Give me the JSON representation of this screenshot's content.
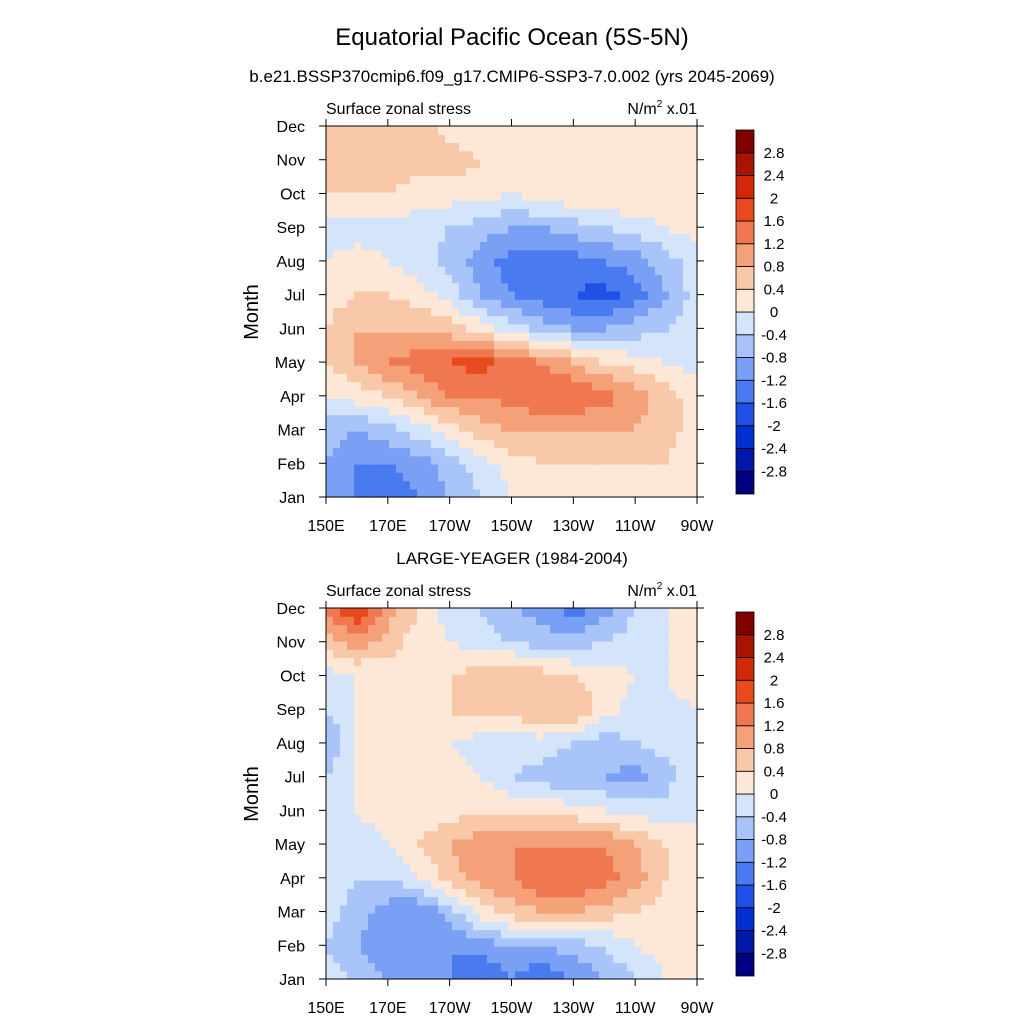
{
  "figure": {
    "title": "Equatorial Pacific Ocean (5S-5N)",
    "colors": [
      "#000080",
      "#0018a8",
      "#0030d0",
      "#2050e8",
      "#4a7af0",
      "#7aa0f5",
      "#a8c4f8",
      "#d4e4fb",
      "#fde8d8",
      "#f8c8a8",
      "#f4a078",
      "#f07850",
      "#e84a20",
      "#d02808",
      "#a81400",
      "#800000"
    ],
    "levels": [
      -2.8,
      -2.4,
      -2,
      -1.6,
      -1.2,
      -0.8,
      -0.4,
      0,
      0.4,
      0.8,
      1.2,
      1.6,
      2,
      2.4,
      2.8
    ]
  },
  "chart_data": [
    {
      "type": "heatmap",
      "title": "b.e21.BSSP370cmip6.f09_g17.CMIP6-SSP3-7.0.002 (yrs 2045-2069)",
      "left_label": "Surface zonal stress",
      "units_base": "N/m",
      "units_exp": "2",
      "units_scale": " x.01",
      "ylabel": "Month",
      "x_ticks": [
        "150E",
        "170E",
        "170W",
        "150W",
        "130W",
        "110W",
        "90W"
      ],
      "y_ticks": [
        "Jan",
        "Feb",
        "Mar",
        "Apr",
        "May",
        "Jun",
        "Jul",
        "Aug",
        "Sep",
        "Oct",
        "Nov",
        "Dec"
      ],
      "xlim": [
        150,
        270
      ],
      "ylim": [
        1,
        12
      ],
      "colorbar_labels": [
        "2.8",
        "2.4",
        "2",
        "1.6",
        "1.2",
        "0.8",
        "0.4",
        "0",
        "-0.4",
        "-0.8",
        "-1.2",
        "-1.6",
        "-2",
        "-2.4",
        "-2.8"
      ],
      "x": [
        150,
        160,
        170,
        180,
        190,
        200,
        210,
        220,
        230,
        240,
        250,
        260,
        270
      ],
      "z": [
        [
          -0.8,
          -1.2,
          -1.6,
          -1.2,
          -0.8,
          -0.4,
          0.0,
          0.2,
          0.4,
          0.3,
          0.4,
          0.4,
          0.2
        ],
        [
          -0.8,
          -1.2,
          -1.2,
          -1.0,
          -0.6,
          -0.2,
          0.2,
          0.4,
          0.4,
          0.4,
          0.4,
          0.4,
          0.0
        ],
        [
          -0.6,
          -0.8,
          -0.6,
          -0.2,
          0.2,
          0.6,
          0.8,
          0.8,
          0.8,
          0.8,
          0.8,
          0.6,
          0.2
        ],
        [
          0.0,
          0.2,
          0.4,
          0.8,
          1.2,
          1.2,
          1.4,
          1.6,
          1.6,
          1.4,
          1.0,
          0.6,
          0.2
        ],
        [
          0.4,
          0.8,
          1.2,
          1.4,
          1.6,
          1.8,
          1.4,
          1.2,
          0.8,
          0.4,
          0.2,
          0.0,
          -0.2
        ],
        [
          0.4,
          0.8,
          0.8,
          0.8,
          0.6,
          0.2,
          -0.2,
          -0.6,
          -0.8,
          -0.8,
          -0.6,
          -0.4,
          -0.2
        ],
        [
          0.2,
          0.4,
          0.4,
          0.2,
          -0.2,
          -0.8,
          -1.2,
          -1.4,
          -1.6,
          -1.8,
          -1.4,
          -0.8,
          -0.2
        ],
        [
          0.0,
          0.2,
          0.0,
          -0.2,
          -0.6,
          -1.0,
          -1.4,
          -1.4,
          -1.4,
          -1.2,
          -1.0,
          -0.6,
          -0.2
        ],
        [
          -0.2,
          -0.2,
          -0.2,
          -0.2,
          -0.4,
          -0.6,
          -0.8,
          -0.8,
          -0.6,
          -0.4,
          -0.2,
          0.0,
          0.2
        ],
        [
          0.4,
          0.4,
          0.4,
          0.2,
          0.2,
          0.2,
          0.0,
          0.2,
          0.4,
          0.4,
          0.4,
          0.4,
          0.4
        ],
        [
          0.6,
          0.8,
          0.6,
          0.6,
          0.6,
          0.4,
          0.4,
          0.4,
          0.4,
          0.4,
          0.4,
          0.4,
          0.4
        ],
        [
          0.6,
          0.6,
          0.6,
          0.6,
          0.2,
          0.2,
          0.0,
          0.0,
          0.2,
          0.4,
          0.4,
          0.4,
          0.4
        ]
      ]
    },
    {
      "type": "heatmap",
      "title": "LARGE-YEAGER (1984-2004)",
      "left_label": "Surface zonal stress",
      "units_base": "N/m",
      "units_exp": "2",
      "units_scale": " x.01",
      "ylabel": "Month",
      "x_ticks": [
        "150E",
        "170E",
        "170W",
        "150W",
        "130W",
        "110W",
        "90W"
      ],
      "y_ticks": [
        "Jan",
        "Feb",
        "Mar",
        "Apr",
        "May",
        "Jun",
        "Jul",
        "Aug",
        "Sep",
        "Oct",
        "Nov",
        "Dec"
      ],
      "xlim": [
        150,
        270
      ],
      "ylim": [
        1,
        12
      ],
      "colorbar_labels": [
        "2.8",
        "2.4",
        "2",
        "1.6",
        "1.2",
        "0.8",
        "0.4",
        "0",
        "-0.4",
        "-0.8",
        "-1.2",
        "-1.6",
        "-2",
        "-2.4",
        "-2.8"
      ],
      "x": [
        150,
        160,
        170,
        180,
        190,
        200,
        210,
        220,
        230,
        240,
        250,
        260,
        270
      ],
      "z": [
        [
          -0.2,
          -0.4,
          -0.8,
          -0.8,
          -1.2,
          -1.6,
          -1.2,
          -1.6,
          -1.2,
          -0.8,
          -0.4,
          0.0,
          0.2
        ],
        [
          -0.4,
          -0.8,
          -1.2,
          -1.2,
          -1.2,
          -1.0,
          -0.8,
          -0.8,
          -0.6,
          -0.4,
          0.0,
          0.2,
          0.2
        ],
        [
          -0.2,
          -0.6,
          -1.0,
          -1.2,
          -0.6,
          0.2,
          0.6,
          0.8,
          0.8,
          0.6,
          0.4,
          0.2,
          0.2
        ],
        [
          -0.2,
          -0.4,
          -0.4,
          0.0,
          0.6,
          1.0,
          1.2,
          1.6,
          1.6,
          1.4,
          1.0,
          0.4,
          0.2
        ],
        [
          0.0,
          -0.2,
          0.0,
          0.4,
          0.8,
          1.0,
          1.2,
          1.2,
          1.2,
          1.2,
          0.8,
          0.4,
          0.0
        ],
        [
          0.0,
          0.0,
          0.2,
          0.2,
          0.2,
          0.4,
          0.4,
          0.4,
          0.2,
          0.0,
          -0.2,
          -0.2,
          0.0
        ],
        [
          -0.4,
          0.0,
          0.2,
          0.2,
          0.2,
          0.0,
          -0.4,
          -0.6,
          -0.8,
          -0.8,
          -1.0,
          -0.6,
          0.0
        ],
        [
          -0.8,
          0.0,
          0.2,
          0.2,
          0.0,
          -0.2,
          -0.2,
          -0.2,
          -0.4,
          -0.6,
          -0.4,
          -0.2,
          0.0
        ],
        [
          -0.4,
          0.0,
          0.2,
          0.2,
          0.4,
          0.6,
          0.6,
          0.8,
          0.8,
          0.2,
          -0.2,
          -0.2,
          0.0
        ],
        [
          -0.2,
          0.0,
          0.2,
          0.2,
          0.4,
          0.6,
          0.8,
          0.6,
          0.4,
          0.2,
          0.0,
          0.0,
          0.4
        ],
        [
          0.6,
          1.0,
          0.6,
          0.2,
          0.0,
          -0.2,
          -0.4,
          -0.6,
          -0.6,
          -0.4,
          -0.2,
          0.0,
          0.2
        ],
        [
          1.4,
          2.0,
          1.0,
          0.4,
          -0.2,
          -0.4,
          -0.8,
          -1.0,
          -1.4,
          -1.0,
          -0.4,
          0.0,
          0.2
        ]
      ]
    }
  ]
}
